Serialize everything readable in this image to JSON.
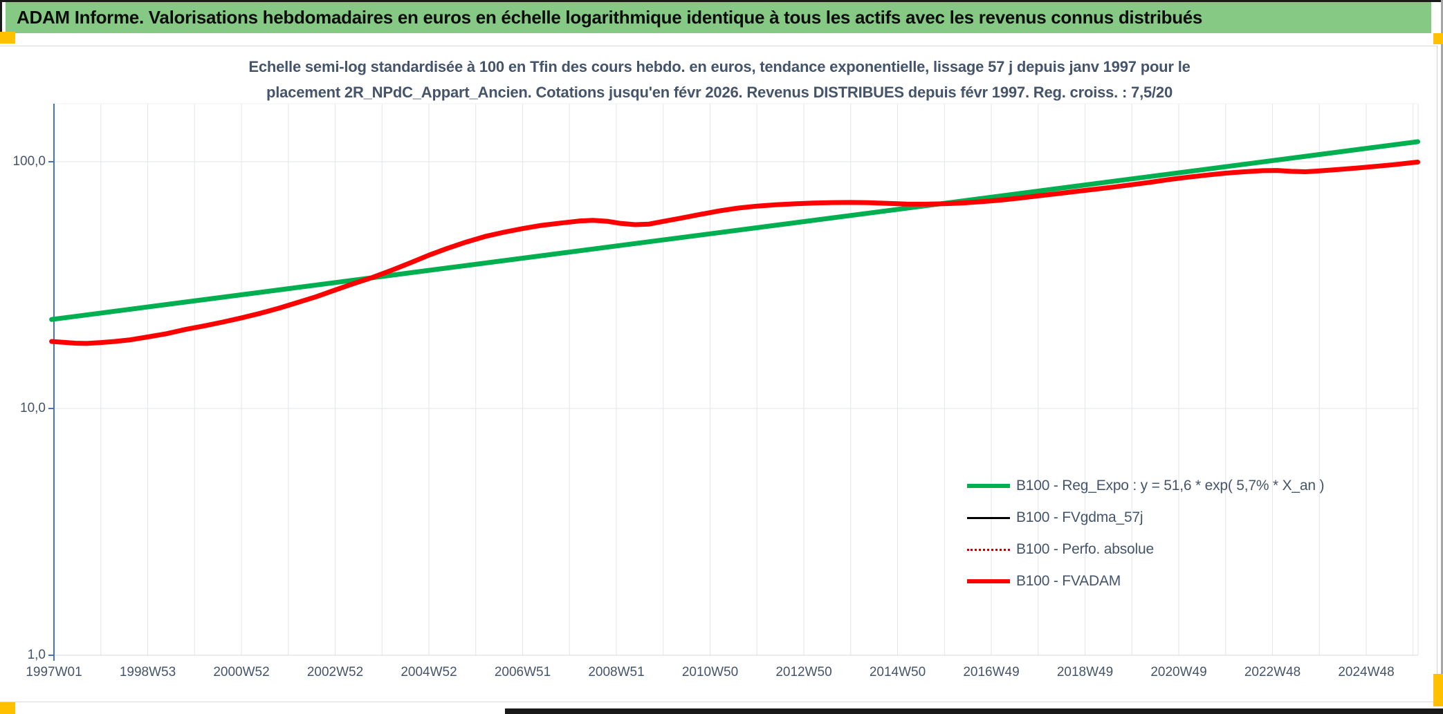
{
  "header": {
    "title": "ADAM Informe. Valorisations hebdomadaires en euros en échelle logarithmique identique à tous les actifs avec les revenus connus distribués",
    "bg_color": "#85C985",
    "accent_color": "#FFC000"
  },
  "colors": {
    "title_text": "#44546A",
    "axis_text": "#44546A",
    "axis_line": "#4472C4",
    "gridline": "#E3E6EA",
    "plot_border": "#D6DAE0",
    "reg_expo": "#00B050",
    "fvgdma": "#000000",
    "perfo_absolue": "#C00000",
    "fvadam": "#FF0000"
  },
  "chart_data": {
    "type": "line",
    "title_lines": [
      "Echelle semi-log standardisée à 100 en Tfin des cours hebdo. en euros, tendance exponentielle, lissage 57 j depuis janv 1997 pour le",
      "placement 2R_NPdC_Appart_Ancien. Cotations jusqu'en févr 2026. Revenus DISTRIBUES depuis févr 1997. Reg. croiss. : 7,5/20"
    ],
    "y_axis": {
      "scale": "log10",
      "ticks": [
        {
          "label": "100,0",
          "value": 100
        },
        {
          "label": "10,0",
          "value": 10
        },
        {
          "label": "1,0",
          "value": 1
        }
      ],
      "range": [
        1,
        184
      ],
      "grid": "decades-only"
    },
    "x_axis": {
      "unit": "ISO week of year",
      "tick_labels": [
        "1997W01",
        "1998W53",
        "2000W52",
        "2002W52",
        "2004W52",
        "2006W51",
        "2008W51",
        "2010W50",
        "2012W50",
        "2014W50",
        "2016W49",
        "2018W49",
        "2020W49",
        "2022W48",
        "2024W48"
      ],
      "tick_years": [
        1997,
        1999,
        2001,
        2003,
        2005,
        2007,
        2009,
        2011,
        2013,
        2015,
        2017,
        2019,
        2021,
        2023,
        2025
      ],
      "range_years": [
        1996.95,
        2026.15
      ],
      "gridline_every_years": 1
    },
    "regression": {
      "formula": "y = 51,6 * exp( 5,7% *  X_an )",
      "coefficient": 51.6,
      "annual_growth": 0.057,
      "score": "7,5/20"
    },
    "series": [
      {
        "name": "B100 - Reg_Expo : y = 51,6 * exp( 5,7% *  X_an )",
        "color": "#00B050",
        "width": 7,
        "style": "solid",
        "points": [
          [
            1996.95,
            22.95
          ],
          [
            2026.1,
            120.6
          ]
        ]
      },
      {
        "name": "B100 - FVgdma_57j",
        "color": "#000000",
        "width": 3,
        "style": "solid",
        "points_same_as": "B100 - FVADAM",
        "note": "coincides with FVADAM curve, hidden beneath it"
      },
      {
        "name": "B100 - Perfo. absolue",
        "color": "#C00000",
        "width": 2,
        "style": "dotted",
        "points_same_as": "B100 - FVADAM",
        "note": "coincides with FVADAM curve, hidden beneath it"
      },
      {
        "name": "B100 - FVADAM",
        "color": "#FF0000",
        "width": 7,
        "style": "solid",
        "points": [
          [
            1996.95,
            18.7
          ],
          [
            1997.2,
            18.55
          ],
          [
            1997.45,
            18.4
          ],
          [
            1997.7,
            18.35
          ],
          [
            1998.0,
            18.5
          ],
          [
            1998.3,
            18.7
          ],
          [
            1998.6,
            18.95
          ],
          [
            1999.0,
            19.5
          ],
          [
            1999.4,
            20.1
          ],
          [
            1999.8,
            20.9
          ],
          [
            2000.2,
            21.6
          ],
          [
            2000.6,
            22.4
          ],
          [
            2001.0,
            23.3
          ],
          [
            2001.4,
            24.3
          ],
          [
            2001.8,
            25.5
          ],
          [
            2002.2,
            26.9
          ],
          [
            2002.6,
            28.4
          ],
          [
            2003.0,
            30.2
          ],
          [
            2003.4,
            32.1
          ],
          [
            2003.8,
            34.0
          ],
          [
            2004.2,
            36.3
          ],
          [
            2004.6,
            38.9
          ],
          [
            2005.0,
            41.8
          ],
          [
            2005.4,
            44.6
          ],
          [
            2005.8,
            47.3
          ],
          [
            2006.2,
            49.8
          ],
          [
            2006.6,
            51.8
          ],
          [
            2007.0,
            53.6
          ],
          [
            2007.4,
            55.2
          ],
          [
            2007.8,
            56.4
          ],
          [
            2008.2,
            57.5
          ],
          [
            2008.5,
            57.9
          ],
          [
            2008.8,
            57.4
          ],
          [
            2009.1,
            56.2
          ],
          [
            2009.4,
            55.6
          ],
          [
            2009.7,
            55.9
          ],
          [
            2010.0,
            57.3
          ],
          [
            2010.4,
            59.2
          ],
          [
            2010.8,
            61.2
          ],
          [
            2011.2,
            63.2
          ],
          [
            2011.6,
            64.9
          ],
          [
            2012.0,
            66.1
          ],
          [
            2012.4,
            66.9
          ],
          [
            2012.8,
            67.5
          ],
          [
            2013.2,
            68.0
          ],
          [
            2013.6,
            68.3
          ],
          [
            2014.0,
            68.4
          ],
          [
            2014.4,
            68.2
          ],
          [
            2014.8,
            67.8
          ],
          [
            2015.2,
            67.4
          ],
          [
            2015.6,
            67.3
          ],
          [
            2016.0,
            67.6
          ],
          [
            2016.4,
            68.1
          ],
          [
            2016.8,
            68.9
          ],
          [
            2017.2,
            69.9
          ],
          [
            2017.6,
            71.2
          ],
          [
            2018.0,
            72.7
          ],
          [
            2018.4,
            74.2
          ],
          [
            2018.8,
            75.8
          ],
          [
            2019.2,
            77.3
          ],
          [
            2019.6,
            78.9
          ],
          [
            2020.0,
            80.7
          ],
          [
            2020.4,
            82.6
          ],
          [
            2020.8,
            84.7
          ],
          [
            2021.2,
            86.6
          ],
          [
            2021.6,
            88.3
          ],
          [
            2022.0,
            89.9
          ],
          [
            2022.4,
            91.1
          ],
          [
            2022.8,
            92.0
          ],
          [
            2023.1,
            92.2
          ],
          [
            2023.4,
            91.4
          ],
          [
            2023.7,
            91.1
          ],
          [
            2024.0,
            91.8
          ],
          [
            2024.4,
            93.0
          ],
          [
            2024.8,
            94.3
          ],
          [
            2025.2,
            95.8
          ],
          [
            2025.6,
            97.3
          ],
          [
            2026.0,
            99.2
          ],
          [
            2026.1,
            99.7
          ]
        ]
      }
    ]
  },
  "legend": {
    "position": "center-right",
    "items": [
      {
        "label": "B100 - Reg_Expo : y = 51,6 * exp( 5,7% *  X_an )",
        "color": "#00B050",
        "thickness": 6,
        "style": "solid"
      },
      {
        "label": "B100 - FVgdma_57j",
        "color": "#000000",
        "thickness": 3,
        "style": "solid"
      },
      {
        "label": "B100 - Perfo. absolue",
        "color": "#C00000",
        "thickness": 3,
        "style": "dotted"
      },
      {
        "label": "B100 - FVADAM",
        "color": "#FF0000",
        "thickness": 6,
        "style": "solid"
      }
    ]
  }
}
